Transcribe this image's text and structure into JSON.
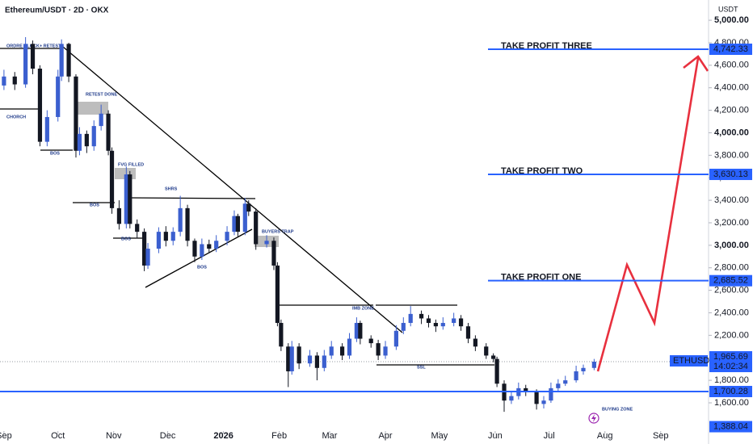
{
  "chart_data": {
    "type": "candlestick",
    "title": "Ethereum/USDT · 2D · OKX",
    "y_axis_label": "USDT",
    "up_color": "#3b5fcf",
    "down_color": "#131722",
    "level_color": "#2962ff",
    "xlim": [
      -2.2,
      391.6
    ],
    "xticks": [
      {
        "value": 0,
        "label": "Sep"
      },
      {
        "value": 30,
        "label": "Oct"
      },
      {
        "value": 61,
        "label": "Nov"
      },
      {
        "value": 91,
        "label": "Dec"
      },
      {
        "value": 122,
        "label": "2026"
      },
      {
        "value": 153,
        "label": "Feb"
      },
      {
        "value": 181,
        "label": "Mar"
      },
      {
        "value": 212,
        "label": "Apr"
      },
      {
        "value": 242,
        "label": "May"
      },
      {
        "value": 273,
        "label": "Jun"
      },
      {
        "value": 303,
        "label": "Jul"
      },
      {
        "value": 334,
        "label": "Aug"
      },
      {
        "value": 365,
        "label": "Sep"
      }
    ],
    "ylim": [
      1234,
      5180
    ],
    "yticks": [
      {
        "value": 1600,
        "label": "1,600.00"
      },
      {
        "value": 1800,
        "label": "1,800.00"
      },
      {
        "value": 2000,
        "label": "2,000.00"
      },
      {
        "value": 2200,
        "label": "2,200.00"
      },
      {
        "value": 2400,
        "label": "2,400.00"
      },
      {
        "value": 2600,
        "label": "2,600.00"
      },
      {
        "value": 2800,
        "label": "2,800.00"
      },
      {
        "value": 3000,
        "label": "3,000.00"
      },
      {
        "value": 3200,
        "label": "3,200.00"
      },
      {
        "value": 3400,
        "label": "3,400.00"
      },
      {
        "value": 3600,
        "label": "3,600.00"
      },
      {
        "value": 3800,
        "label": "3,800.00"
      },
      {
        "value": 4000,
        "label": "4,000.00"
      },
      {
        "value": 4200,
        "label": "4,200.00"
      },
      {
        "value": 4400,
        "label": "4,400.00"
      },
      {
        "value": 4600,
        "label": "4,600.00"
      },
      {
        "value": 4800,
        "label": "4,800.00"
      },
      {
        "value": 5000,
        "label": "5,000.00"
      }
    ],
    "candles": [
      [
        0,
        4420,
        4560,
        4380,
        4500
      ],
      [
        6,
        4500,
        4540,
        4380,
        4430
      ],
      [
        12,
        4430,
        4850,
        4400,
        4790
      ],
      [
        16,
        4790,
        4820,
        4520,
        4570
      ],
      [
        20,
        4570,
        4600,
        3880,
        3920
      ],
      [
        24,
        3920,
        4200,
        3880,
        4140
      ],
      [
        30,
        4140,
        4560,
        4100,
        4500
      ],
      [
        32,
        4500,
        4830,
        4460,
        4790
      ],
      [
        36,
        4790,
        4800,
        4450,
        4500
      ],
      [
        40,
        4500,
        4520,
        3780,
        3840
      ],
      [
        42,
        3840,
        4050,
        3800,
        3990
      ],
      [
        46,
        3990,
        4020,
        3820,
        3880
      ],
      [
        50,
        3880,
        4110,
        3840,
        4060
      ],
      [
        54,
        4060,
        4250,
        4020,
        4170
      ],
      [
        58,
        4170,
        4200,
        3800,
        3840
      ],
      [
        60,
        3840,
        3870,
        3280,
        3330
      ],
      [
        64,
        3330,
        3400,
        3140,
        3190
      ],
      [
        68,
        3190,
        3700,
        3150,
        3630
      ],
      [
        70,
        3630,
        3660,
        3150,
        3190
      ],
      [
        74,
        3190,
        3230,
        3060,
        3120
      ],
      [
        78,
        3120,
        3150,
        2770,
        2820
      ],
      [
        80,
        2820,
        3020,
        2790,
        2970
      ],
      [
        86,
        2970,
        3160,
        2930,
        3120
      ],
      [
        90,
        3120,
        3170,
        2990,
        3040
      ],
      [
        94,
        3040,
        3160,
        3000,
        3120
      ],
      [
        98,
        3120,
        3440,
        3080,
        3330
      ],
      [
        102,
        3330,
        3360,
        2990,
        3040
      ],
      [
        106,
        3040,
        3060,
        2850,
        2900
      ],
      [
        110,
        2900,
        3060,
        2870,
        3010
      ],
      [
        114,
        3010,
        3050,
        2930,
        2970
      ],
      [
        118,
        2970,
        3090,
        2940,
        3040
      ],
      [
        124,
        3040,
        3170,
        3000,
        3120
      ],
      [
        128,
        3120,
        3310,
        3090,
        3260
      ],
      [
        130,
        3260,
        3280,
        3080,
        3120
      ],
      [
        134,
        3120,
        3420,
        3090,
        3370
      ],
      [
        136,
        3370,
        3400,
        3260,
        3300
      ],
      [
        140,
        3300,
        3330,
        2960,
        3010
      ],
      [
        146,
        3010,
        3090,
        2980,
        3040
      ],
      [
        150,
        3040,
        3070,
        2780,
        2820
      ],
      [
        152,
        2820,
        2850,
        2280,
        2310
      ],
      [
        154,
        2310,
        2340,
        2060,
        2100
      ],
      [
        158,
        2100,
        2130,
        1740,
        1880
      ],
      [
        160,
        1880,
        2150,
        1850,
        2100
      ],
      [
        164,
        2100,
        2130,
        1900,
        1950
      ],
      [
        170,
        1950,
        2070,
        1920,
        2020
      ],
      [
        174,
        2020,
        2050,
        1800,
        1910
      ],
      [
        178,
        1910,
        2070,
        1880,
        2020
      ],
      [
        182,
        2020,
        2150,
        1990,
        2100
      ],
      [
        188,
        2100,
        2130,
        1980,
        2020
      ],
      [
        192,
        2020,
        2220,
        1990,
        2170
      ],
      [
        196,
        2170,
        2360,
        2140,
        2310
      ],
      [
        198,
        2310,
        2330,
        2120,
        2170
      ],
      [
        204,
        2170,
        2200,
        2090,
        2130
      ],
      [
        208,
        2130,
        2160,
        1980,
        2020
      ],
      [
        212,
        2020,
        2150,
        1990,
        2100
      ],
      [
        218,
        2100,
        2290,
        2070,
        2240
      ],
      [
        222,
        2240,
        2360,
        2210,
        2310
      ],
      [
        226,
        2310,
        2460,
        2280,
        2390
      ],
      [
        232,
        2390,
        2420,
        2300,
        2350
      ],
      [
        236,
        2350,
        2380,
        2270,
        2310
      ],
      [
        240,
        2310,
        2340,
        2230,
        2280
      ],
      [
        244,
        2280,
        2360,
        2250,
        2310
      ],
      [
        250,
        2310,
        2400,
        2280,
        2350
      ],
      [
        254,
        2350,
        2380,
        2240,
        2280
      ],
      [
        258,
        2280,
        2310,
        2130,
        2170
      ],
      [
        262,
        2170,
        2200,
        2060,
        2100
      ],
      [
        268,
        2100,
        2130,
        1990,
        2020
      ],
      [
        272,
        2020,
        2040,
        1960,
        1990
      ],
      [
        274,
        1990,
        2010,
        1740,
        1770
      ],
      [
        278,
        1770,
        1800,
        1520,
        1620
      ],
      [
        282,
        1620,
        1700,
        1590,
        1660
      ],
      [
        286,
        1660,
        1780,
        1630,
        1730
      ],
      [
        290,
        1730,
        1760,
        1660,
        1700
      ],
      [
        296,
        1700,
        1720,
        1540,
        1590
      ],
      [
        300,
        1590,
        1660,
        1550,
        1620
      ],
      [
        304,
        1620,
        1780,
        1600,
        1730
      ],
      [
        308,
        1730,
        1810,
        1700,
        1770
      ],
      [
        312,
        1770,
        1840,
        1750,
        1800
      ],
      [
        318,
        1800,
        1930,
        1780,
        1880
      ],
      [
        322,
        1880,
        1940,
        1850,
        1910
      ],
      [
        328,
        1910,
        1990,
        1890,
        1965.69
      ]
    ],
    "levels": {
      "names": [
        "TAKE PROFIT THREE",
        "TAKE PROFIT TWO",
        "TAKE PROFIT ONE",
        null
      ],
      "values": [
        4742.33,
        3630.13,
        2685.52,
        1700.28
      ],
      "value_labels": [
        "4,742.33",
        "3,630.13",
        "2,685.52",
        "1,700.28"
      ]
    },
    "low_tag": {
      "value": 1388.04,
      "value_label": "1,388.04"
    },
    "last": {
      "name": "ETHUSDT",
      "value_label": "1,965.69",
      "countdown": "14:02:34"
    },
    "annotations": [
      "ORDRE BLOCK+ RETEST",
      "CHORCH",
      "RETEST DONE",
      "BOS",
      "FVG FILLED",
      "BOS",
      "BOS",
      "SHRS",
      "BOS",
      "BUYERS TRAP",
      "IMB ZONE",
      "SSL",
      "BUYING ZONE"
    ]
  }
}
